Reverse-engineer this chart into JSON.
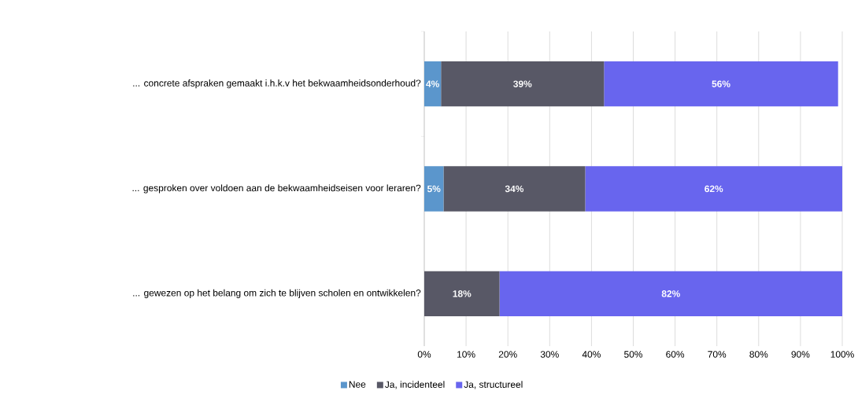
{
  "chart_data": {
    "type": "bar",
    "orientation": "horizontal",
    "stacked": true,
    "categories": [
      "... concrete afspraken gemaakt i.h.k.v het bekwaamheidsonderhoud?",
      "... gesproken over voldoen aan de bekwaamheidseisen voor leraren?",
      "... gewezen op het belang om zich te blijven scholen en ontwikkelen?"
    ],
    "series": [
      {
        "name": "Nee",
        "color": "#5b96cc",
        "values": [
          4,
          4.6,
          null
        ],
        "value_labels": [
          "4%",
          "5%",
          null
        ]
      },
      {
        "name": "Ja, incidenteel",
        "color": "#585866",
        "values": [
          39,
          33.9,
          18
        ],
        "value_labels": [
          "39%",
          "34%",
          "18%"
        ]
      },
      {
        "name": "Ja, structureel",
        "color": "#6865ee",
        "values": [
          56,
          61.5,
          82
        ],
        "value_labels": [
          "56%",
          "62%",
          "82%"
        ]
      }
    ],
    "xlim": [
      0,
      100
    ],
    "xticks": [
      {
        "value": 0,
        "label": "0%"
      },
      {
        "value": 10,
        "label": "10%"
      },
      {
        "value": 20,
        "label": "20%"
      },
      {
        "value": 30,
        "label": "30%"
      },
      {
        "value": 40,
        "label": "40%"
      },
      {
        "value": 50,
        "label": "50%"
      },
      {
        "value": 60,
        "label": "60%"
      },
      {
        "value": 70,
        "label": "70%"
      },
      {
        "value": 80,
        "label": "80%"
      },
      {
        "value": 90,
        "label": "90%"
      },
      {
        "value": 100,
        "label": "100%"
      }
    ],
    "grid": "x",
    "legend": "bottom"
  }
}
